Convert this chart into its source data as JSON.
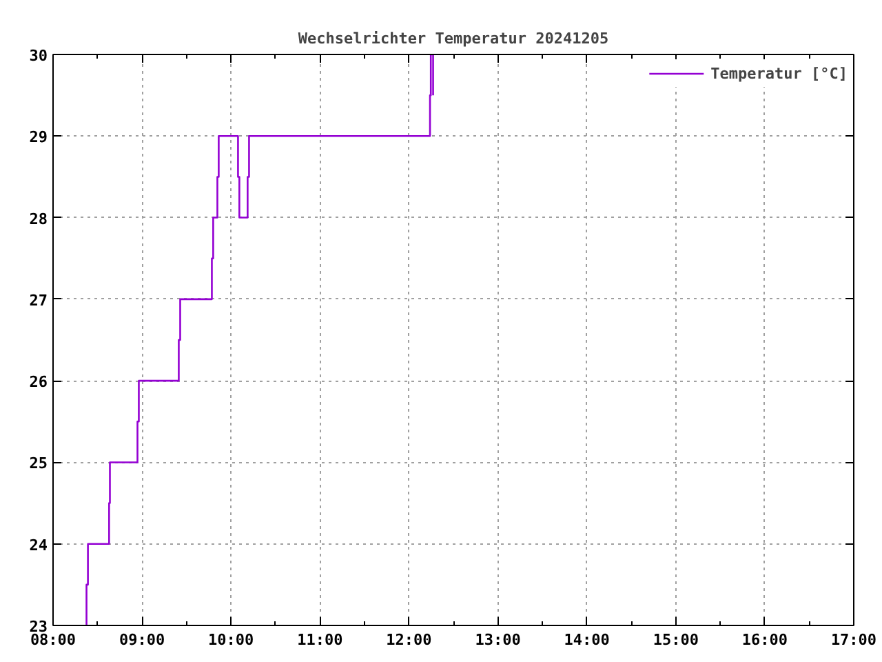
{
  "chart_data": {
    "type": "step",
    "title": "Wechselrichter Temperatur 20241205",
    "xlim": [
      8,
      17
    ],
    "ylim": [
      23,
      30
    ],
    "xticks": [
      {
        "value": 8,
        "label": "08:00"
      },
      {
        "value": 8.5,
        "label": null
      },
      {
        "value": 9,
        "label": "09:00"
      },
      {
        "value": 9.5,
        "label": null
      },
      {
        "value": 10,
        "label": "10:00"
      },
      {
        "value": 10.5,
        "label": null
      },
      {
        "value": 11,
        "label": "11:00"
      },
      {
        "value": 11.5,
        "label": null
      },
      {
        "value": 12,
        "label": "12:00"
      },
      {
        "value": 12.5,
        "label": null
      },
      {
        "value": 13,
        "label": "13:00"
      },
      {
        "value": 13.5,
        "label": null
      },
      {
        "value": 14,
        "label": "14:00"
      },
      {
        "value": 14.5,
        "label": null
      },
      {
        "value": 15,
        "label": "15:00"
      },
      {
        "value": 15.5,
        "label": null
      },
      {
        "value": 16,
        "label": "16:00"
      },
      {
        "value": 16.5,
        "label": null
      },
      {
        "value": 17,
        "label": "17:00"
      }
    ],
    "yticks": [
      23,
      24,
      25,
      26,
      27,
      28,
      29,
      30
    ],
    "grid": true,
    "legend": "top right",
    "line_style": "solid",
    "series": [
      {
        "name": "Temperatur [°C]",
        "color": "#9400d3",
        "x": [
          8.376,
          8.376,
          8.392,
          8.63,
          8.639,
          8.949,
          8.964,
          9.413,
          9.429,
          9.785,
          9.8,
          9.847,
          9.862,
          10.079,
          10.094,
          10.187,
          10.203,
          12.237,
          12.246,
          12.272
        ],
        "values": [
          23,
          23.5,
          24,
          24.5,
          25,
          25.5,
          26,
          26.5,
          27,
          27.5,
          28,
          28.5,
          29,
          28.5,
          28,
          28.5,
          29,
          29.5,
          30,
          29.5
        ]
      }
    ]
  }
}
